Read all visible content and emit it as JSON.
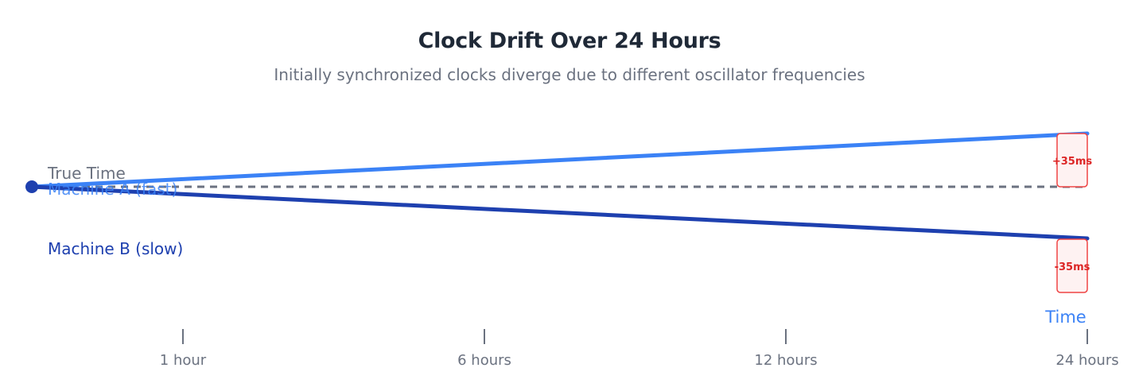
{
  "title": "Clock Drift Over 24 Hours",
  "subtitle": "Initially synchronized clocks diverge due to different oscillator frequencies",
  "lines": {
    "true_time": {
      "label": "True Time",
      "color": "#6b7280"
    },
    "machine_a": {
      "label": "Machine A (fast)",
      "color": "#3b82f6"
    },
    "machine_b": {
      "label": "Machine B (slow)",
      "color": "#1e40af"
    }
  },
  "offsets": {
    "machine_a": "+35ms",
    "machine_b": "-35ms",
    "badge_border": "#ef4444",
    "badge_fill": "#fef2f2",
    "badge_text": "#dc2626"
  },
  "axis": {
    "label": "Time",
    "label_color": "#3b82f6",
    "ticks": [
      "1 hour",
      "6 hours",
      "12 hours",
      "24 hours"
    ]
  }
}
